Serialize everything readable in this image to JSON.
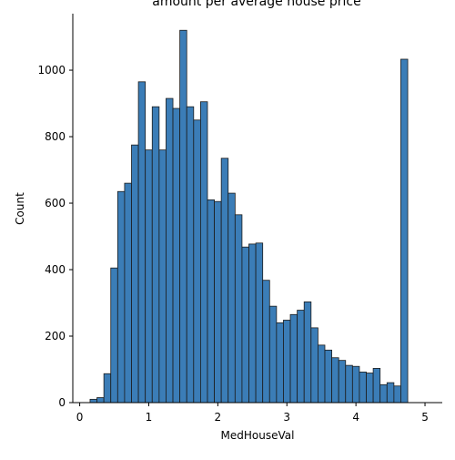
{
  "chart_data": {
    "type": "bar",
    "title": "amount per average house price",
    "xlabel": "MedHouseVal",
    "ylabel": "Count",
    "xlim": [
      -0.1,
      5.25
    ],
    "ylim": [
      0,
      1170
    ],
    "x_ticks": [
      0,
      1,
      2,
      3,
      4,
      5
    ],
    "y_ticks": [
      0,
      200,
      400,
      600,
      800,
      1000
    ],
    "bin_start": 0.14999,
    "bin_width": 0.1,
    "values": [
      10,
      15,
      87,
      405,
      635,
      660,
      775,
      965,
      760,
      890,
      760,
      915,
      885,
      1120,
      890,
      850,
      905,
      610,
      605,
      735,
      630,
      565,
      468,
      477,
      480,
      368,
      290,
      240,
      248,
      265,
      278,
      303,
      225,
      173,
      158,
      135,
      127,
      112,
      109,
      92,
      89,
      103,
      54,
      60,
      50,
      1033
    ],
    "bar_color": "#3b7db7",
    "edge_color": "#1c1c1c",
    "grid": false,
    "spines": [
      "left",
      "bottom"
    ]
  }
}
